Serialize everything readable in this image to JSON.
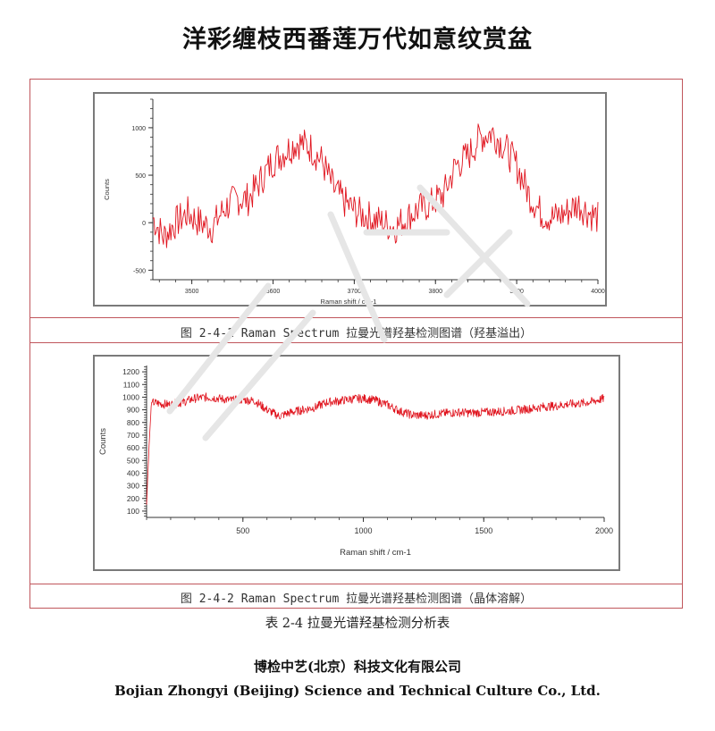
{
  "header": {
    "title": "洋彩缠枝西番莲万代如意纹赏盆"
  },
  "figures": [
    {
      "caption": "图 2-4-1 Raman Spectrum 拉曼光谱羟基检测图谱（羟基溢出）"
    },
    {
      "caption": "图 2-4-2 Raman Spectrum 拉曼光谱羟基检测图谱（晶体溶解）"
    }
  ],
  "table_caption": "表 2-4 拉曼光谱羟基检测分析表",
  "footer": {
    "company_cn": "博检中艺(北京）科技文化有限公司",
    "company_en": "Bojian Zhongyi (Beijing) Science and Technical Culture Co., Ltd."
  },
  "colors": {
    "frame": "#c0565c",
    "panel_border": "#7a7a7a",
    "series": "#e0141e"
  },
  "chart_data": [
    {
      "type": "line",
      "title": "Raman Spectrum (羟基溢出)",
      "xlabel": "Raman shift / cm-1",
      "ylabel": "Counts",
      "xlim": [
        3452,
        4000
      ],
      "ylim": [
        -600,
        1300
      ],
      "xticks": [
        3500,
        3600,
        3700,
        3800,
        3900,
        4000
      ],
      "yticks": [
        -500,
        0,
        500,
        1000
      ],
      "xtick_labels": [
        "3500",
        "3600",
        "3700",
        "3800",
        "3900",
        "4000"
      ],
      "ytick_labels": [
        "-500",
        "0",
        "500",
        "1000"
      ],
      "grid": false,
      "legend": null,
      "series": [
        {
          "name": "spectrum",
          "x": [
            3452,
            3465,
            3480,
            3495,
            3510,
            3525,
            3540,
            3555,
            3570,
            3585,
            3600,
            3615,
            3630,
            3645,
            3660,
            3675,
            3690,
            3705,
            3720,
            3735,
            3750,
            3765,
            3780,
            3795,
            3810,
            3825,
            3840,
            3855,
            3870,
            3885,
            3900,
            3915,
            3930,
            3945,
            3960,
            3975,
            3990,
            4000
          ],
          "values": [
            50,
            -150,
            0,
            100,
            0,
            -50,
            150,
            250,
            250,
            450,
            650,
            750,
            850,
            800,
            650,
            350,
            200,
            100,
            50,
            0,
            -50,
            50,
            150,
            200,
            300,
            600,
            700,
            900,
            950,
            800,
            600,
            300,
            100,
            50,
            100,
            200,
            100,
            50
          ]
        }
      ],
      "annotations": []
    },
    {
      "type": "line",
      "title": "Raman Spectrum (晶体溶解)",
      "xlabel": "Raman shift / cm-1",
      "ylabel": "Counts",
      "xlim": [
        100,
        2000
      ],
      "ylim": [
        50,
        1250
      ],
      "xticks": [
        500,
        1000,
        1500,
        2000
      ],
      "yticks": [
        100,
        200,
        300,
        400,
        500,
        600,
        700,
        800,
        900,
        1000,
        1100,
        1200
      ],
      "xtick_labels": [
        "500",
        "1000",
        "1500",
        "2000"
      ],
      "ytick_labels": [
        "100",
        "200",
        "300",
        "400",
        "500",
        "600",
        "700",
        "800",
        "900",
        "1000",
        "1100",
        "1200"
      ],
      "grid": false,
      "legend": null,
      "series": [
        {
          "name": "spectrum",
          "x": [
            100,
            110,
            120,
            150,
            200,
            250,
            300,
            350,
            400,
            450,
            500,
            550,
            600,
            650,
            700,
            750,
            800,
            850,
            900,
            950,
            1000,
            1050,
            1100,
            1150,
            1200,
            1250,
            1300,
            1350,
            1400,
            1450,
            1500,
            1550,
            1600,
            1650,
            1700,
            1750,
            1800,
            1850,
            1900,
            1950,
            2000
          ],
          "values": [
            150,
            600,
            960,
            950,
            940,
            960,
            990,
            1000,
            990,
            975,
            980,
            970,
            900,
            850,
            880,
            900,
            920,
            960,
            970,
            985,
            990,
            975,
            940,
            890,
            860,
            855,
            865,
            875,
            880,
            875,
            880,
            885,
            890,
            900,
            910,
            925,
            930,
            945,
            950,
            965,
            990
          ]
        }
      ],
      "annotations": []
    }
  ]
}
